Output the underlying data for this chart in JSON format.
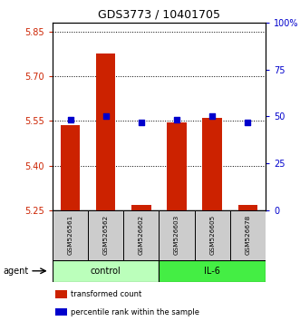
{
  "title": "GDS3773 / 10401705",
  "samples": [
    "GSM526561",
    "GSM526562",
    "GSM526602",
    "GSM526603",
    "GSM526605",
    "GSM526678"
  ],
  "groups": [
    {
      "label": "control",
      "indices": [
        0,
        1,
        2
      ],
      "color": "#bbffbb"
    },
    {
      "label": "IL-6",
      "indices": [
        3,
        4,
        5
      ],
      "color": "#44ee44"
    }
  ],
  "red_values": [
    5.535,
    5.775,
    5.267,
    5.545,
    5.56,
    5.267
  ],
  "blue_values": [
    5.555,
    5.565,
    5.545,
    5.555,
    5.565,
    5.545
  ],
  "ymin": 5.25,
  "ymax": 5.88,
  "yticks_left": [
    5.25,
    5.4,
    5.55,
    5.7,
    5.85
  ],
  "yticks_right": [
    0,
    25,
    50,
    75,
    100
  ],
  "yticks_right_labels": [
    "0",
    "25",
    "50",
    "75",
    "100%"
  ],
  "bar_color": "#cc2200",
  "dot_color": "#0000cc",
  "bar_bottom": 5.25,
  "bar_width": 0.55,
  "legend_items": [
    "transformed count",
    "percentile rank within the sample"
  ],
  "legend_colors": [
    "#cc2200",
    "#0000cc"
  ],
  "agent_label": "agent",
  "left_axis_color": "#cc2200",
  "right_axis_color": "#0000cc",
  "sample_box_color": "#cccccc",
  "fig_width": 3.31,
  "fig_height": 3.54,
  "dpi": 100
}
